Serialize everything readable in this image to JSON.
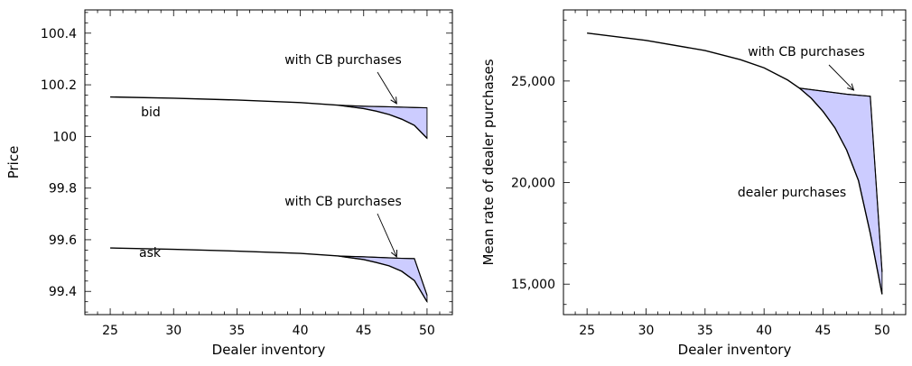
{
  "chart_data": [
    {
      "type": "area",
      "xlabel": "Dealer inventory",
      "ylabel": "Price",
      "xlim": [
        23,
        52
      ],
      "ylim": [
        99.31,
        100.49
      ],
      "xticks": [
        25,
        30,
        35,
        40,
        45,
        50
      ],
      "xtick_labels": [
        "25",
        "30",
        "35",
        "40",
        "45",
        "50"
      ],
      "yticks": [
        99.4,
        99.6,
        99.8,
        100,
        100.2,
        100.4
      ],
      "ytick_labels": [
        "99.4",
        "99.6",
        "99.8",
        "100",
        "100.2",
        "100.4"
      ],
      "grid": false,
      "fill_color": "#ccccff",
      "series": [
        {
          "label": "bid",
          "curve_without": {
            "x": [
              25,
              30,
              35,
              40,
              43,
              45,
              46,
              47,
              48,
              49,
              50
            ],
            "y": [
              100.153,
              100.148,
              100.141,
              100.131,
              100.121,
              100.108,
              100.098,
              100.085,
              100.067,
              100.043,
              99.993
            ]
          },
          "curve_with": {
            "x": [
              43,
              45,
              47,
              49,
              50
            ],
            "y": [
              100.121,
              100.117,
              100.115,
              100.112,
              100.111
            ]
          }
        },
        {
          "label": "ask",
          "curve_without": {
            "x": [
              25,
              30,
              35,
              40,
              43,
              45,
              46,
              47,
              48,
              49,
              50
            ],
            "y": [
              99.568,
              99.563,
              99.556,
              99.547,
              99.537,
              99.523,
              99.512,
              99.499,
              99.478,
              99.442,
              99.36
            ]
          },
          "curve_with": {
            "x": [
              43,
              45,
              47,
              48,
              49,
              50
            ],
            "y": [
              99.537,
              99.534,
              99.53,
              99.528,
              99.527,
              99.385
            ]
          }
        }
      ],
      "annotations": [
        {
          "text": "with CB purchases",
          "arrow_to": [
            47.6,
            100.127
          ]
        },
        {
          "text": "with CB purchases",
          "arrow_to": [
            47.6,
            99.534
          ]
        }
      ]
    },
    {
      "type": "area",
      "xlabel": "Dealer inventory",
      "ylabel": "Mean rate of dealer purchases",
      "xlim": [
        23,
        52
      ],
      "ylim": [
        13500,
        28500
      ],
      "xticks": [
        25,
        30,
        35,
        40,
        45,
        50
      ],
      "xtick_labels": [
        "25",
        "30",
        "35",
        "40",
        "45",
        "50"
      ],
      "yticks": [
        15000,
        20000,
        25000
      ],
      "ytick_labels": [
        "15,000",
        "20,000",
        "25,000"
      ],
      "grid": false,
      "fill_color": "#ccccff",
      "series": [
        {
          "label": "dealer purchases",
          "curve_without": {
            "x": [
              25,
              30,
              35,
              38,
              40,
              42,
              43,
              44,
              45,
              46,
              47,
              48,
              49,
              50
            ],
            "y": [
              27360,
              27000,
              26500,
              26050,
              25650,
              25050,
              24650,
              24150,
              23500,
              22700,
              21600,
              20100,
              17500,
              14500
            ]
          },
          "curve_with": {
            "x": [
              43,
              45,
              47,
              49,
              50
            ],
            "y": [
              24650,
              24500,
              24350,
              24250,
              15600
            ]
          }
        }
      ],
      "annotations": [
        {
          "text": "with CB purchases",
          "arrow_to": [
            47.6,
            24550
          ]
        }
      ]
    }
  ]
}
